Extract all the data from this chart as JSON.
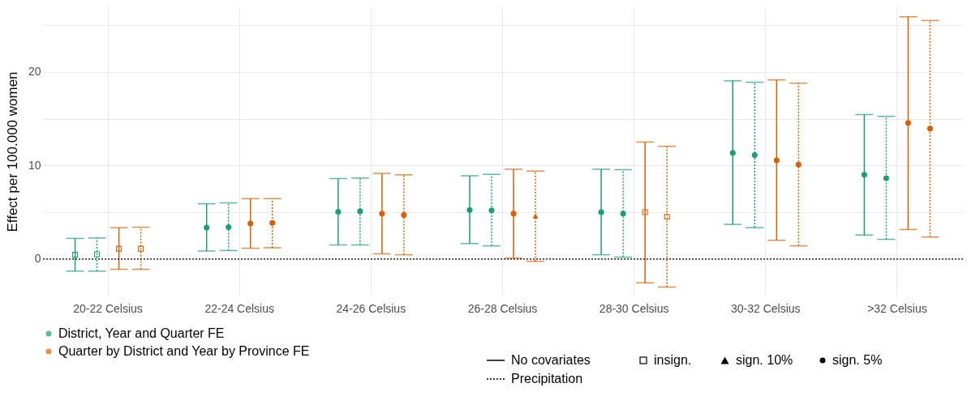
{
  "chart_data": {
    "type": "scatter",
    "categories": [
      "20-22 Celsius",
      "22-24 Celsius",
      "24-26 Celsius",
      "26-28 Celsius",
      "28-30 Celsius",
      "30-32 Celsius",
      ">32 Celsius"
    ],
    "ylabel": "Effect per 100.000 women",
    "ylim": [
      -4,
      27
    ],
    "yticks": [
      0,
      {
        "value": 5,
        "label": null
      },
      10,
      {
        "value": 15,
        "label": null
      },
      20,
      {
        "value": 25,
        "label": null
      }
    ],
    "grid": true,
    "legend": "bottom",
    "annotations": [
      "No covariates",
      "Precipitation",
      "insign.",
      "sign. 10%",
      "sign. 5%"
    ],
    "ref_lines": [
      {
        "axis": "y",
        "value": 0,
        "color": "#000000",
        "line_style": "dotted"
      }
    ],
    "series": [
      {
        "name": "District, Year and Quarter FE",
        "color": "#1b9e77",
        "line_style": "solid",
        "marker": "circle",
        "values": [
          null,
          3.35,
          5.05,
          5.25,
          5.0,
          11.35,
          9.0
        ],
        "errors": [
          null,
          [
            0.85,
            5.9
          ],
          [
            1.5,
            8.6
          ],
          [
            1.65,
            8.9
          ],
          [
            0.45,
            9.6
          ],
          [
            3.7,
            19.05
          ],
          [
            2.55,
            15.45
          ]
        ]
      },
      {
        "color": "#1b9e77",
        "line_style": "solid",
        "marker": "square",
        "values": [
          0.45,
          null,
          null,
          null,
          null,
          null,
          null
        ],
        "errors": [
          [
            -1.3,
            2.2
          ],
          null,
          null,
          null,
          null,
          null,
          null
        ]
      },
      {
        "color": "#1b9e77",
        "line_style": "dotted",
        "marker": "circle",
        "values": [
          null,
          3.4,
          5.1,
          5.2,
          4.85,
          11.1,
          8.65
        ],
        "errors": [
          null,
          [
            0.9,
            6.0
          ],
          [
            1.5,
            8.65
          ],
          [
            1.4,
            9.05
          ],
          [
            0.2,
            9.55
          ],
          [
            3.35,
            18.9
          ],
          [
            2.1,
            15.25
          ]
        ]
      },
      {
        "color": "#1b9e77",
        "line_style": "dotted",
        "marker": "square",
        "values": [
          0.5,
          null,
          null,
          null,
          null,
          null,
          null
        ],
        "errors": [
          [
            -1.3,
            2.25
          ],
          null,
          null,
          null,
          null,
          null,
          null
        ]
      },
      {
        "name": "Quarter by District and Year by Province FE",
        "color": "#d95f02",
        "line_style": "solid",
        "marker": "circle",
        "values": [
          null,
          3.8,
          4.85,
          4.85,
          null,
          10.55,
          14.55
        ],
        "errors": [
          null,
          [
            1.15,
            6.45
          ],
          [
            0.55,
            9.15
          ],
          [
            0.1,
            9.6
          ],
          null,
          [
            2.0,
            19.15
          ],
          [
            3.15,
            25.9
          ]
        ]
      },
      {
        "color": "#d95f02",
        "line_style": "solid",
        "marker": "square",
        "values": [
          1.1,
          null,
          null,
          null,
          5.0,
          null,
          null
        ],
        "errors": [
          [
            -1.1,
            3.35
          ],
          null,
          null,
          null,
          [
            -2.55,
            12.5
          ],
          null,
          null
        ]
      },
      {
        "color": "#d95f02",
        "line_style": "dotted",
        "marker": "circle",
        "values": [
          null,
          3.85,
          4.7,
          null,
          null,
          10.1,
          13.95
        ],
        "errors": [
          null,
          [
            1.2,
            6.45
          ],
          [
            0.45,
            9.0
          ],
          null,
          null,
          [
            1.4,
            18.8
          ],
          [
            2.35,
            25.5
          ]
        ]
      },
      {
        "color": "#d95f02",
        "line_style": "dotted",
        "marker": "square",
        "values": [
          1.1,
          null,
          null,
          null,
          4.5,
          null,
          null
        ],
        "errors": [
          [
            -1.1,
            3.4
          ],
          null,
          null,
          null,
          [
            -3.0,
            12.05
          ],
          null,
          null
        ]
      },
      {
        "color": "#d95f02",
        "line_style": "dotted",
        "marker": "triangle",
        "values": [
          null,
          null,
          null,
          4.6,
          null,
          null,
          null
        ],
        "errors": [
          null,
          null,
          null,
          [
            -0.25,
            9.4
          ],
          null,
          null,
          null
        ]
      }
    ]
  }
}
